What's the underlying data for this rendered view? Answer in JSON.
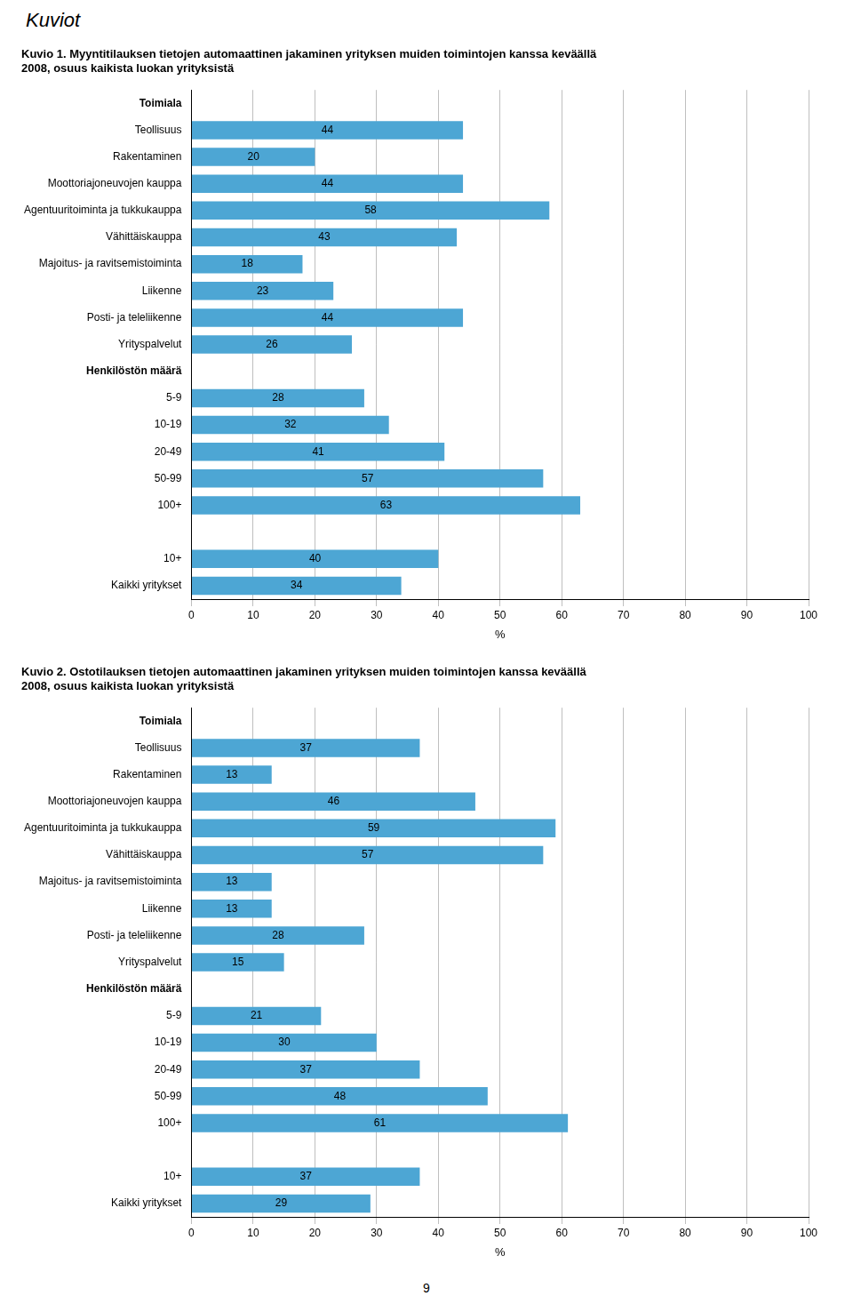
{
  "page_title": "Kuviot",
  "page_number": "9",
  "chart_data": [
    {
      "type": "bar",
      "orientation": "horizontal",
      "title": "Kuvio 1. Myyntitilauksen tietojen automaattinen jakaminen yrityksen muiden toimintojen kanssa keväällä\n2008, osuus kaikista luokan yrityksistä",
      "categories": [
        "Toimiala",
        "Teollisuus",
        "Rakentaminen",
        "Moottoriajoneuvojen kauppa",
        "Agentuuritoiminta ja tukkukauppa",
        "Vähittäiskauppa",
        "Majoitus- ja ravitsemistoiminta",
        "Liikenne",
        "Posti- ja teleliikenne",
        "Yrityspalvelut",
        "Henkilöstön määrä",
        "5-9",
        "10-19",
        "20-49",
        "50-99",
        "100+",
        null,
        "10+",
        "Kaikki yritykset"
      ],
      "values": [
        null,
        44,
        20,
        44,
        58,
        43,
        18,
        23,
        44,
        26,
        null,
        28,
        32,
        41,
        57,
        63,
        null,
        40,
        34
      ],
      "xlabel": "%",
      "xlim": [
        0,
        100
      ],
      "xticks": [
        0,
        10,
        20,
        30,
        40,
        50,
        60,
        70,
        80,
        90,
        100
      ],
      "color": "#4da6d4",
      "data_labels": true,
      "grid": true
    },
    {
      "type": "bar",
      "orientation": "horizontal",
      "title": "Kuvio 2. Ostotilauksen tietojen automaattinen jakaminen yrityksen muiden toimintojen kanssa keväällä\n2008, osuus kaikista luokan yrityksistä",
      "categories": [
        "Toimiala",
        "Teollisuus",
        "Rakentaminen",
        "Moottoriajoneuvojen kauppa",
        "Agentuuritoiminta ja tukkukauppa",
        "Vähittäiskauppa",
        "Majoitus- ja ravitsemistoiminta",
        "Liikenne",
        "Posti- ja teleliikenne",
        "Yrityspalvelut",
        "Henkilöstön määrä",
        "5-9",
        "10-19",
        "20-49",
        "50-99",
        "100+",
        null,
        "10+",
        "Kaikki yritykset"
      ],
      "values": [
        null,
        37,
        13,
        46,
        59,
        57,
        13,
        13,
        28,
        15,
        null,
        21,
        30,
        37,
        48,
        61,
        null,
        37,
        29
      ],
      "xlabel": "%",
      "xlim": [
        0,
        100
      ],
      "xticks": [
        0,
        10,
        20,
        30,
        40,
        50,
        60,
        70,
        80,
        90,
        100
      ],
      "color": "#4da6d4",
      "data_labels": true,
      "grid": true
    }
  ]
}
